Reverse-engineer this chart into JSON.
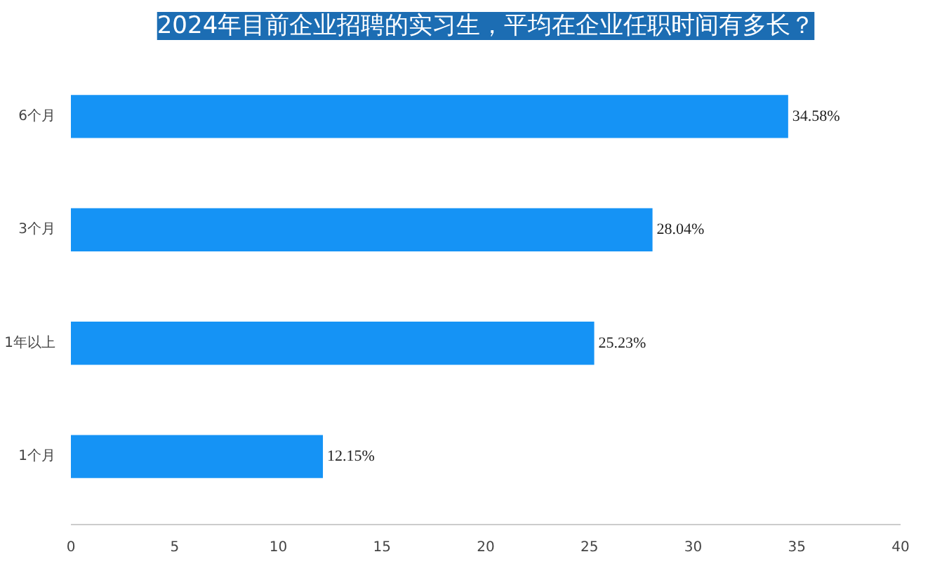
{
  "chart_data": {
    "type": "bar",
    "orientation": "horizontal",
    "title": "2024年目前企业招聘的实习生，平均在企业任职时间有多长？",
    "categories": [
      "6个月",
      "3个月",
      "1年以上",
      "1个月"
    ],
    "values": [
      34.58,
      28.04,
      25.23,
      12.15
    ],
    "color": "#1593f5",
    "xlim": [
      0,
      40
    ],
    "xticks": [
      0,
      5,
      10,
      15,
      20,
      25,
      30,
      35,
      40
    ],
    "data_labels": true,
    "value_labels": [
      "34.58%",
      "28.04%",
      "25.23%",
      "12.15%"
    ],
    "grid": false
  }
}
